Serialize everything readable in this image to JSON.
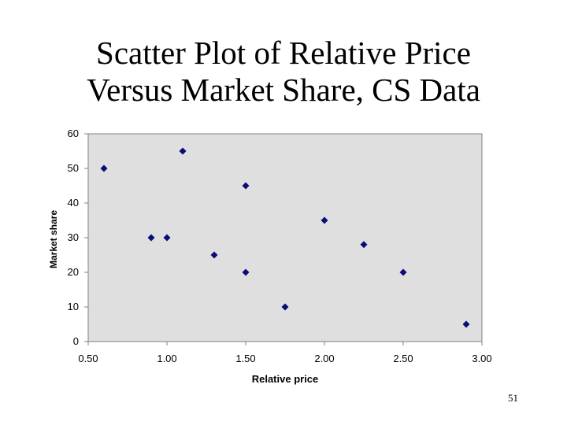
{
  "slide": {
    "title_line1": "Scatter Plot of  Relative Price",
    "title_line2": "Versus Market Share, CS Data",
    "page_number": "51"
  },
  "colors": {
    "plot_background": "#dfdfdf",
    "marker": "#0b0b7a",
    "axis": "#808080"
  },
  "chart_data": {
    "type": "scatter",
    "title": "Scatter Plot of  Relative Price Versus Market Share, CS Data",
    "xlabel": "Relative price",
    "ylabel": "Market share",
    "xlim": [
      0.5,
      3.0
    ],
    "ylim": [
      0,
      60
    ],
    "x_ticks": [
      "0.50",
      "1.00",
      "1.50",
      "2.00",
      "2.50",
      "3.00"
    ],
    "y_ticks": [
      "0",
      "10",
      "20",
      "30",
      "40",
      "50",
      "60"
    ],
    "grid": false,
    "legend": "none",
    "marker": "diamond",
    "points": [
      {
        "x": 0.6,
        "y": 50
      },
      {
        "x": 0.9,
        "y": 30
      },
      {
        "x": 1.0,
        "y": 30
      },
      {
        "x": 1.1,
        "y": 55
      },
      {
        "x": 1.3,
        "y": 25
      },
      {
        "x": 1.5,
        "y": 45
      },
      {
        "x": 1.5,
        "y": 20
      },
      {
        "x": 1.75,
        "y": 10
      },
      {
        "x": 2.0,
        "y": 35
      },
      {
        "x": 2.25,
        "y": 28
      },
      {
        "x": 2.5,
        "y": 20
      },
      {
        "x": 2.9,
        "y": 5
      }
    ]
  }
}
